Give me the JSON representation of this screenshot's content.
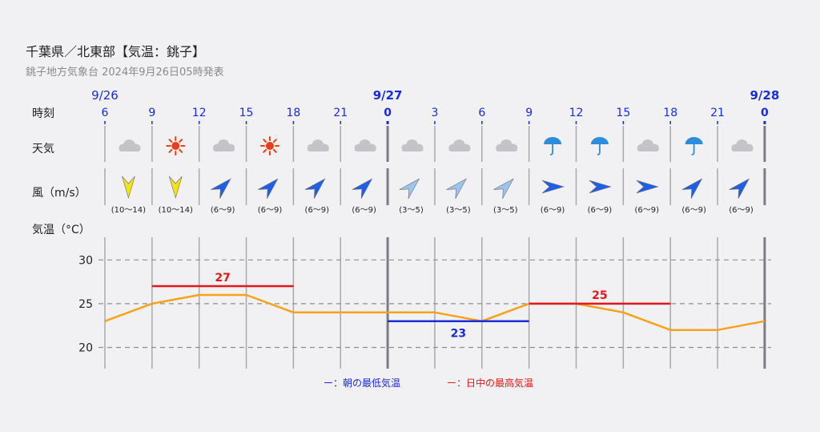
{
  "header": {
    "title": "千葉県／北東部【気温：銚子】",
    "subtitle": "銚子地方気象台 2024年9月26日05時発表"
  },
  "rows": {
    "time_label": "時刻",
    "weather_label": "天気",
    "wind_label": "風（m/s）",
    "temp_label": "気温（°C）"
  },
  "chart_data": {
    "type": "line",
    "date_labels": [
      {
        "slot": 0,
        "text": "9/26",
        "bold": false
      },
      {
        "slot": 6,
        "text": "9/27",
        "bold": true
      },
      {
        "slot": 14,
        "text": "9/28",
        "bold": true
      }
    ],
    "hours": [
      "6",
      "9",
      "12",
      "15",
      "18",
      "21",
      "0",
      "3",
      "6",
      "9",
      "12",
      "15",
      "18",
      "21",
      "0"
    ],
    "bold_hours": [
      6,
      14
    ],
    "weather": [
      "cloudy",
      "sunny",
      "cloudy",
      "sunny",
      "cloudy",
      "cloudy",
      "cloudy",
      "cloudy",
      "cloudy",
      "rain",
      "rain",
      "cloudy",
      "rain",
      "cloudy"
    ],
    "wind": [
      {
        "dir_deg": 0,
        "range": "(10〜14)",
        "color": "#f2e317"
      },
      {
        "dir_deg": 0,
        "range": "(10〜14)",
        "color": "#f2e317"
      },
      {
        "dir_deg": 225,
        "range": "(6〜9)",
        "color": "#1f5fe6"
      },
      {
        "dir_deg": 225,
        "range": "(6〜9)",
        "color": "#1f5fe6"
      },
      {
        "dir_deg": 225,
        "range": "(6〜9)",
        "color": "#1f5fe6"
      },
      {
        "dir_deg": 225,
        "range": "(6〜9)",
        "color": "#1f5fe6"
      },
      {
        "dir_deg": 225,
        "range": "(3〜5)",
        "color": "#9cc4ec"
      },
      {
        "dir_deg": 225,
        "range": "(3〜5)",
        "color": "#9cc4ec"
      },
      {
        "dir_deg": 225,
        "range": "(3〜5)",
        "color": "#9cc4ec"
      },
      {
        "dir_deg": 270,
        "range": "(6〜9)",
        "color": "#1f5fe6"
      },
      {
        "dir_deg": 270,
        "range": "(6〜9)",
        "color": "#1f5fe6"
      },
      {
        "dir_deg": 270,
        "range": "(6〜9)",
        "color": "#1f5fe6"
      },
      {
        "dir_deg": 225,
        "range": "(6〜9)",
        "color": "#1f5fe6"
      },
      {
        "dir_deg": 225,
        "range": "(6〜9)",
        "color": "#1f5fe6"
      }
    ],
    "temperature": {
      "x": [
        "9/26 6",
        "9/26 9",
        "9/26 12",
        "9/26 15",
        "9/26 18",
        "9/26 21",
        "9/27 0",
        "9/27 3",
        "9/27 6",
        "9/27 9",
        "9/27 12",
        "9/27 15",
        "9/27 18",
        "9/27 21",
        "9/28 0"
      ],
      "values": [
        23,
        25,
        26,
        26,
        24,
        24,
        24,
        24,
        23,
        25,
        25,
        24,
        22,
        22,
        23
      ],
      "color": "#f7a21b"
    },
    "min_max": [
      {
        "kind": "max",
        "value": 27,
        "label": "27",
        "from": 1,
        "to": 4,
        "color": "#e0171b"
      },
      {
        "kind": "min",
        "value": 23,
        "label": "23",
        "from": 6,
        "to": 9,
        "color": "#1a2bd8"
      },
      {
        "kind": "max",
        "value": 25,
        "label": "25",
        "from": 9,
        "to": 12,
        "color": "#e0171b"
      }
    ],
    "yticks": [
      20,
      25,
      30
    ],
    "ylim": [
      18,
      32
    ],
    "grid": true,
    "legend": [
      {
        "text": "ー：朝の最低気温",
        "color": "#1a2bd8"
      },
      {
        "text": "ー：日中の最高気温",
        "color": "#e0171b"
      }
    ],
    "legend_position": "bottom-center"
  }
}
